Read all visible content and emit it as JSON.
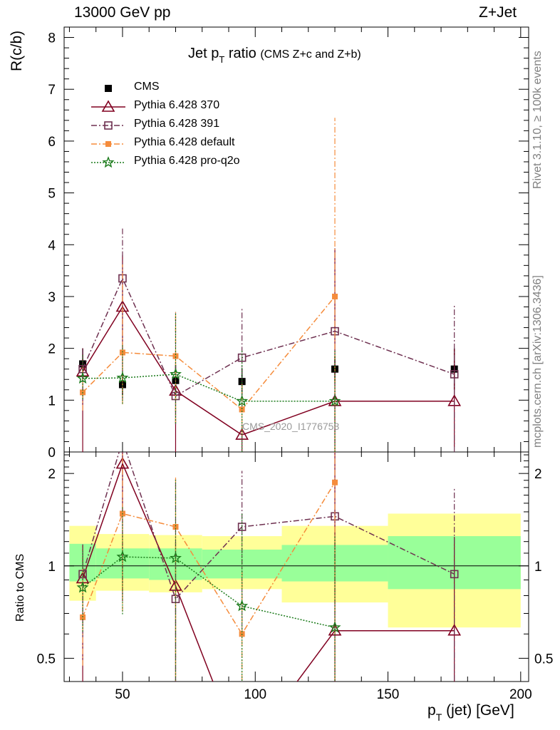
{
  "header": {
    "left": "13000 GeV pp",
    "right": "Z+Jet"
  },
  "side": {
    "rivet": "Rivet 3.1.10, ≥ 100k events",
    "mcplots": "mcplots.cern.ch [arXiv:1306.3436]"
  },
  "title": {
    "main": "Jet p",
    "sub": "T",
    "rest": " ratio ",
    "small": "(CMS  Z+c and Z+b)"
  },
  "watermark": "CMS_2020_I1776758",
  "axes": {
    "ylabel_top": "R(c/b)",
    "ylabel_bottom": "Ratio to CMS",
    "xlabel": "p",
    "xlabel_sub": "T",
    "xlabel_rest": " (jet) [GeV]"
  },
  "chart_data": {
    "type": "line",
    "title": "Jet pT ratio (CMS  Z+c and Z+b)",
    "xlim": [
      28,
      203
    ],
    "ylim_top": [
      0,
      8.2
    ],
    "ylim_bottom_log": [
      0.42,
      2.35
    ],
    "x_ticks": [
      50,
      100,
      150,
      200
    ],
    "y_ticks_top": [
      0,
      1,
      2,
      3,
      4,
      5,
      6,
      7,
      8
    ],
    "y_ticks_bottom": [
      0.5,
      1,
      2
    ],
    "bins": [
      [
        30,
        40
      ],
      [
        40,
        60
      ],
      [
        60,
        80
      ],
      [
        80,
        110
      ],
      [
        110,
        150
      ],
      [
        150,
        200
      ]
    ],
    "band_ratio": {
      "yellow": [
        [
          0.77,
          1.35
        ],
        [
          0.83,
          1.27
        ],
        [
          0.82,
          1.26
        ],
        [
          0.84,
          1.25
        ],
        [
          0.76,
          1.35
        ],
        [
          0.63,
          1.48
        ]
      ],
      "green": [
        [
          0.89,
          1.18
        ],
        [
          0.91,
          1.14
        ],
        [
          0.9,
          1.14
        ],
        [
          0.91,
          1.13
        ],
        [
          0.89,
          1.17
        ],
        [
          0.84,
          1.25
        ]
      ]
    },
    "reference": {
      "name": "CMS",
      "x": [
        35,
        50,
        70,
        95,
        130,
        175
      ],
      "y": [
        1.7,
        1.3,
        1.38,
        1.36,
        1.6,
        1.6
      ],
      "yerr_lo": [
        0.3,
        0.2,
        0.3,
        0.25,
        0.25,
        0.4
      ],
      "yerr_hi": [
        0.3,
        0.2,
        0.3,
        0.25,
        0.25,
        0.4
      ]
    },
    "series": [
      {
        "name": "Pythia 6.428 370",
        "color": "#800020",
        "marker": "triangle",
        "dash": "",
        "x": [
          35,
          50,
          70,
          95,
          130,
          175
        ],
        "y": [
          1.55,
          2.8,
          1.18,
          0.33,
          0.98,
          0.98
        ],
        "err_lo": [
          1.55,
          1.8,
          1.18,
          0.33,
          0.98,
          0.88
        ],
        "err_hi": [
          0.45,
          1.0,
          0.45,
          0.2,
          2.95,
          1.0
        ],
        "ratio": [
          0.91,
          2.15,
          0.86,
          0.24,
          0.615,
          0.615
        ]
      },
      {
        "name": "Pythia 6.428 391",
        "color": "#6e3050",
        "marker": "square",
        "dash": "8,3,2,3",
        "x": [
          35,
          50,
          70,
          95,
          130,
          175
        ],
        "y": [
          1.6,
          3.35,
          1.08,
          1.82,
          2.33,
          1.5
        ],
        "err_lo": [
          0.6,
          1.35,
          0.55,
          1.0,
          2.33,
          1.5
        ],
        "err_hi": [
          0.4,
          1.0,
          1.6,
          0.95,
          1.6,
          1.35
        ],
        "ratio": [
          0.94,
          2.56,
          0.78,
          1.34,
          1.45,
          0.94
        ]
      },
      {
        "name": "Pythia 6.428 default",
        "color": "#f58c3c",
        "marker": "fsquare",
        "dash": "8,3,2,3",
        "x": [
          35,
          50,
          70,
          95,
          130,
          175
        ],
        "y": [
          1.15,
          1.92,
          1.85,
          0.82,
          3.0,
          null
        ],
        "err_lo": [
          0.35,
          1.0,
          1.3,
          0.5,
          3.0,
          null
        ],
        "err_hi": [
          0.5,
          1.7,
          0.85,
          0.5,
          3.45,
          null
        ],
        "ratio": [
          0.68,
          1.48,
          1.34,
          0.6,
          1.87,
          null
        ]
      },
      {
        "name": "Pythia 6.428 pro-q2o",
        "color": "#1a7a1a",
        "marker": "star",
        "dash": "2,2",
        "x": [
          35,
          50,
          70,
          95,
          130,
          175
        ],
        "y": [
          1.42,
          1.43,
          1.5,
          0.98,
          0.98,
          null
        ],
        "err_lo": [
          0.4,
          0.5,
          0.95,
          0.98,
          0.98,
          null
        ],
        "err_hi": [
          0.45,
          0.65,
          1.2,
          0.98,
          0.98,
          null
        ],
        "ratio": [
          0.85,
          1.07,
          1.06,
          0.74,
          0.63,
          null
        ]
      }
    ]
  }
}
